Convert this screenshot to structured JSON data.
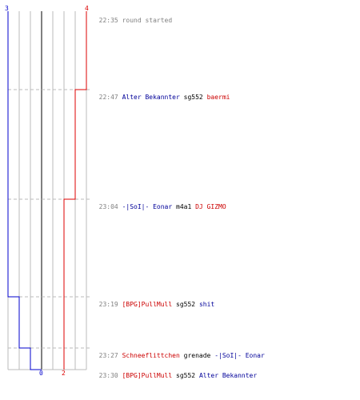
{
  "colors": {
    "team_a": "#0000cc",
    "team_b": "#dd0000",
    "grid": "#bbbbbb",
    "center": "#808080",
    "time": "#808080",
    "gray_text": "#808080"
  },
  "scores": {
    "team_a_start": "3",
    "team_b_start": "4",
    "team_a_end": "0",
    "team_b_end": "2"
  },
  "events": [
    {
      "time": "22:35",
      "text": "round started",
      "kind": "start"
    },
    {
      "time": "22:47",
      "killer": "Alter Bekannter",
      "weapon": "sg552",
      "victim": "baermi",
      "killer_team": "blue",
      "victim_team": "red"
    },
    {
      "time": "23:04",
      "killer": "-|SoI|- Eonar",
      "weapon": "m4a1",
      "victim": "DJ GIZMO",
      "killer_team": "blue",
      "victim_team": "red"
    },
    {
      "time": "23:19",
      "killer": "[BPG]PullMull",
      "weapon": "sg552",
      "victim": "shit",
      "killer_team": "red",
      "victim_team": "blue"
    },
    {
      "time": "23:27",
      "killer": "Schneeflittchen",
      "weapon": "grenade",
      "victim": "-|SoI|- Eonar",
      "killer_team": "red",
      "victim_team": "blue"
    },
    {
      "time": "23:30",
      "killer": "[BPG]PullMull",
      "weapon": "sg552",
      "victim": "Alter Bekannter",
      "killer_team": "red",
      "victim_team": "blue"
    }
  ]
}
